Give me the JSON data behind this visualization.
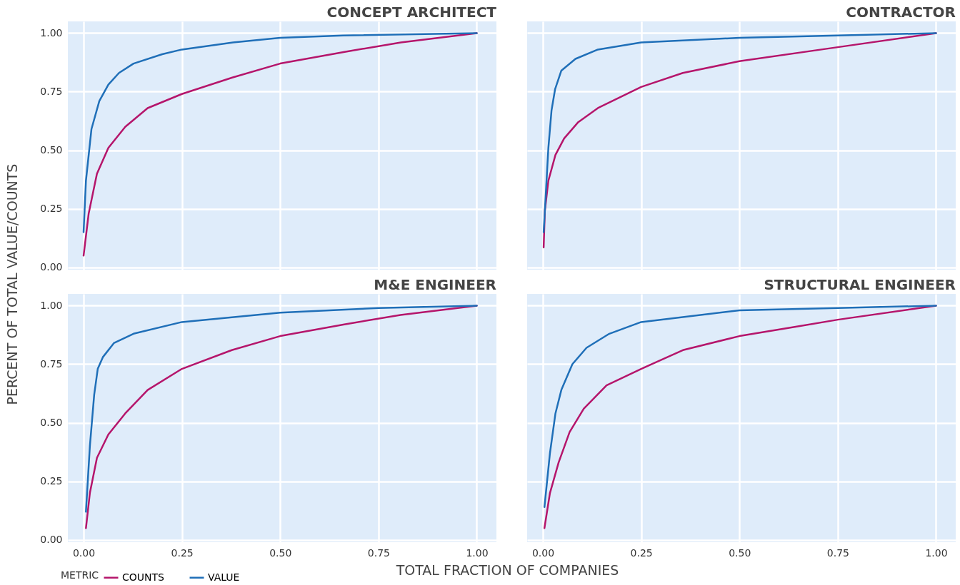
{
  "chart_data": [
    {
      "type": "line",
      "title": "CONCEPT ARCHITECT",
      "ylabel": "PERCENT OF TOTAL VALUE/COUNTS",
      "xlim": [
        -0.04,
        1.05
      ],
      "ylim": [
        -0.01,
        1.05
      ],
      "xticks": [
        {
          "value": 0,
          "label": null
        },
        {
          "value": 0.25,
          "label": null
        },
        {
          "value": 0.5,
          "label": null
        },
        {
          "value": 0.75,
          "label": null
        },
        {
          "value": 1,
          "label": null
        }
      ],
      "yticks": [
        {
          "value": 0,
          "label": "0.00"
        },
        {
          "value": 0.25,
          "label": "0.25"
        },
        {
          "value": 0.5,
          "label": "0.50"
        },
        {
          "value": 0.75,
          "label": "0.75"
        },
        {
          "value": 1,
          "label": "1.00"
        }
      ],
      "tick_labels": "y",
      "grid": true,
      "series": [
        {
          "color": "#b5156b",
          "x": [
            0,
            0.013,
            0.034,
            0.063,
            0.106,
            0.163,
            0.25,
            0.378,
            0.5,
            0.664,
            0.807,
            1
          ],
          "values": [
            0.05,
            0.23,
            0.4,
            0.51,
            0.6,
            0.68,
            0.74,
            0.81,
            0.87,
            0.92,
            0.96,
            1
          ]
        },
        {
          "color": "#1f6fb8",
          "x": [
            0,
            0.006,
            0.02,
            0.04,
            0.063,
            0.09,
            0.127,
            0.2,
            0.25,
            0.38,
            0.5,
            0.66,
            1
          ],
          "values": [
            0.15,
            0.37,
            0.59,
            0.71,
            0.78,
            0.83,
            0.87,
            0.91,
            0.93,
            0.96,
            0.98,
            0.99,
            1
          ]
        }
      ]
    },
    {
      "type": "line",
      "title": "CONTRACTOR",
      "xlim": [
        -0.04,
        1.05
      ],
      "ylim": [
        -0.01,
        1.05
      ],
      "xticks": [
        {
          "value": 0,
          "label": null
        },
        {
          "value": 0.25,
          "label": null
        },
        {
          "value": 0.5,
          "label": null
        },
        {
          "value": 0.75,
          "label": null
        },
        {
          "value": 1,
          "label": null
        }
      ],
      "yticks": [
        {
          "value": 0,
          "label": null
        },
        {
          "value": 0.25,
          "label": null
        },
        {
          "value": 0.5,
          "label": null
        },
        {
          "value": 0.75,
          "label": null
        },
        {
          "value": 1,
          "label": null
        }
      ],
      "tick_labels": false,
      "grid": true,
      "series": [
        {
          "color": "#b5156b",
          "x": [
            0.002,
            0.005,
            0.014,
            0.032,
            0.054,
            0.09,
            0.14,
            0.25,
            0.356,
            0.5,
            0.75,
            1
          ],
          "values": [
            0.085,
            0.24,
            0.37,
            0.48,
            0.55,
            0.62,
            0.68,
            0.77,
            0.83,
            0.88,
            0.94,
            1
          ]
        },
        {
          "color": "#1f6fb8",
          "x": [
            0.002,
            0.014,
            0.022,
            0.031,
            0.047,
            0.083,
            0.14,
            0.25,
            0.5,
            0.75,
            1
          ],
          "values": [
            0.15,
            0.51,
            0.67,
            0.76,
            0.84,
            0.89,
            0.93,
            0.96,
            0.98,
            0.99,
            1
          ]
        }
      ]
    },
    {
      "type": "line",
      "title": "M&E ENGINEER",
      "legend_title": "METRIC",
      "legend": "bottom left",
      "xlim": [
        -0.04,
        1.05
      ],
      "ylim": [
        -0.01,
        1.05
      ],
      "xticks": [
        {
          "value": 0,
          "label": "0.00"
        },
        {
          "value": 0.25,
          "label": "0.25"
        },
        {
          "value": 0.5,
          "label": "0.50"
        },
        {
          "value": 0.75,
          "label": "0.75"
        },
        {
          "value": 1,
          "label": "1.00"
        }
      ],
      "yticks": [
        {
          "value": 0,
          "label": "0.00"
        },
        {
          "value": 0.25,
          "label": "0.25"
        },
        {
          "value": 0.5,
          "label": "0.50"
        },
        {
          "value": 0.75,
          "label": "0.75"
        },
        {
          "value": 1,
          "label": "1.00"
        }
      ],
      "grid": true,
      "series": [
        {
          "name": "COUNTS",
          "color": "#b5156b",
          "x": [
            0.006,
            0.016,
            0.034,
            0.063,
            0.106,
            0.163,
            0.25,
            0.377,
            0.5,
            0.663,
            0.806,
            1
          ],
          "values": [
            0.05,
            0.2,
            0.35,
            0.45,
            0.54,
            0.64,
            0.73,
            0.81,
            0.87,
            0.92,
            0.96,
            1
          ]
        },
        {
          "name": "VALUE",
          "color": "#1f6fb8",
          "x": [
            0.006,
            0.016,
            0.027,
            0.036,
            0.049,
            0.077,
            0.127,
            0.25,
            0.5,
            0.75,
            1
          ],
          "values": [
            0.12,
            0.4,
            0.62,
            0.73,
            0.78,
            0.84,
            0.88,
            0.93,
            0.97,
            0.99,
            1
          ]
        }
      ]
    },
    {
      "type": "line",
      "title": "STRUCTURAL ENGINEER",
      "xlabel": "TOTAL FRACTION OF COMPANIES",
      "xlim": [
        -0.04,
        1.05
      ],
      "ylim": [
        -0.01,
        1.05
      ],
      "xticks": [
        {
          "value": 0,
          "label": "0.00"
        },
        {
          "value": 0.25,
          "label": "0.25"
        },
        {
          "value": 0.5,
          "label": "0.50"
        },
        {
          "value": 0.75,
          "label": "0.75"
        },
        {
          "value": 1,
          "label": "1.00"
        }
      ],
      "yticks": [
        {
          "value": 0,
          "label": null
        },
        {
          "value": 0.25,
          "label": null
        },
        {
          "value": 0.5,
          "label": null
        },
        {
          "value": 0.75,
          "label": null
        },
        {
          "value": 1,
          "label": null
        }
      ],
      "tick_labels": "x",
      "grid": true,
      "series": [
        {
          "color": "#b5156b",
          "x": [
            0.004,
            0.018,
            0.04,
            0.068,
            0.104,
            0.162,
            0.25,
            0.356,
            0.5,
            0.643,
            0.75,
            1
          ],
          "values": [
            0.05,
            0.2,
            0.33,
            0.46,
            0.56,
            0.66,
            0.73,
            0.81,
            0.87,
            0.91,
            0.94,
            1
          ]
        },
        {
          "color": "#1f6fb8",
          "x": [
            0.004,
            0.018,
            0.032,
            0.047,
            0.075,
            0.111,
            0.169,
            0.25,
            0.5,
            0.75,
            1
          ],
          "values": [
            0.14,
            0.37,
            0.54,
            0.64,
            0.75,
            0.82,
            0.88,
            0.93,
            0.98,
            0.99,
            1
          ]
        }
      ]
    }
  ]
}
